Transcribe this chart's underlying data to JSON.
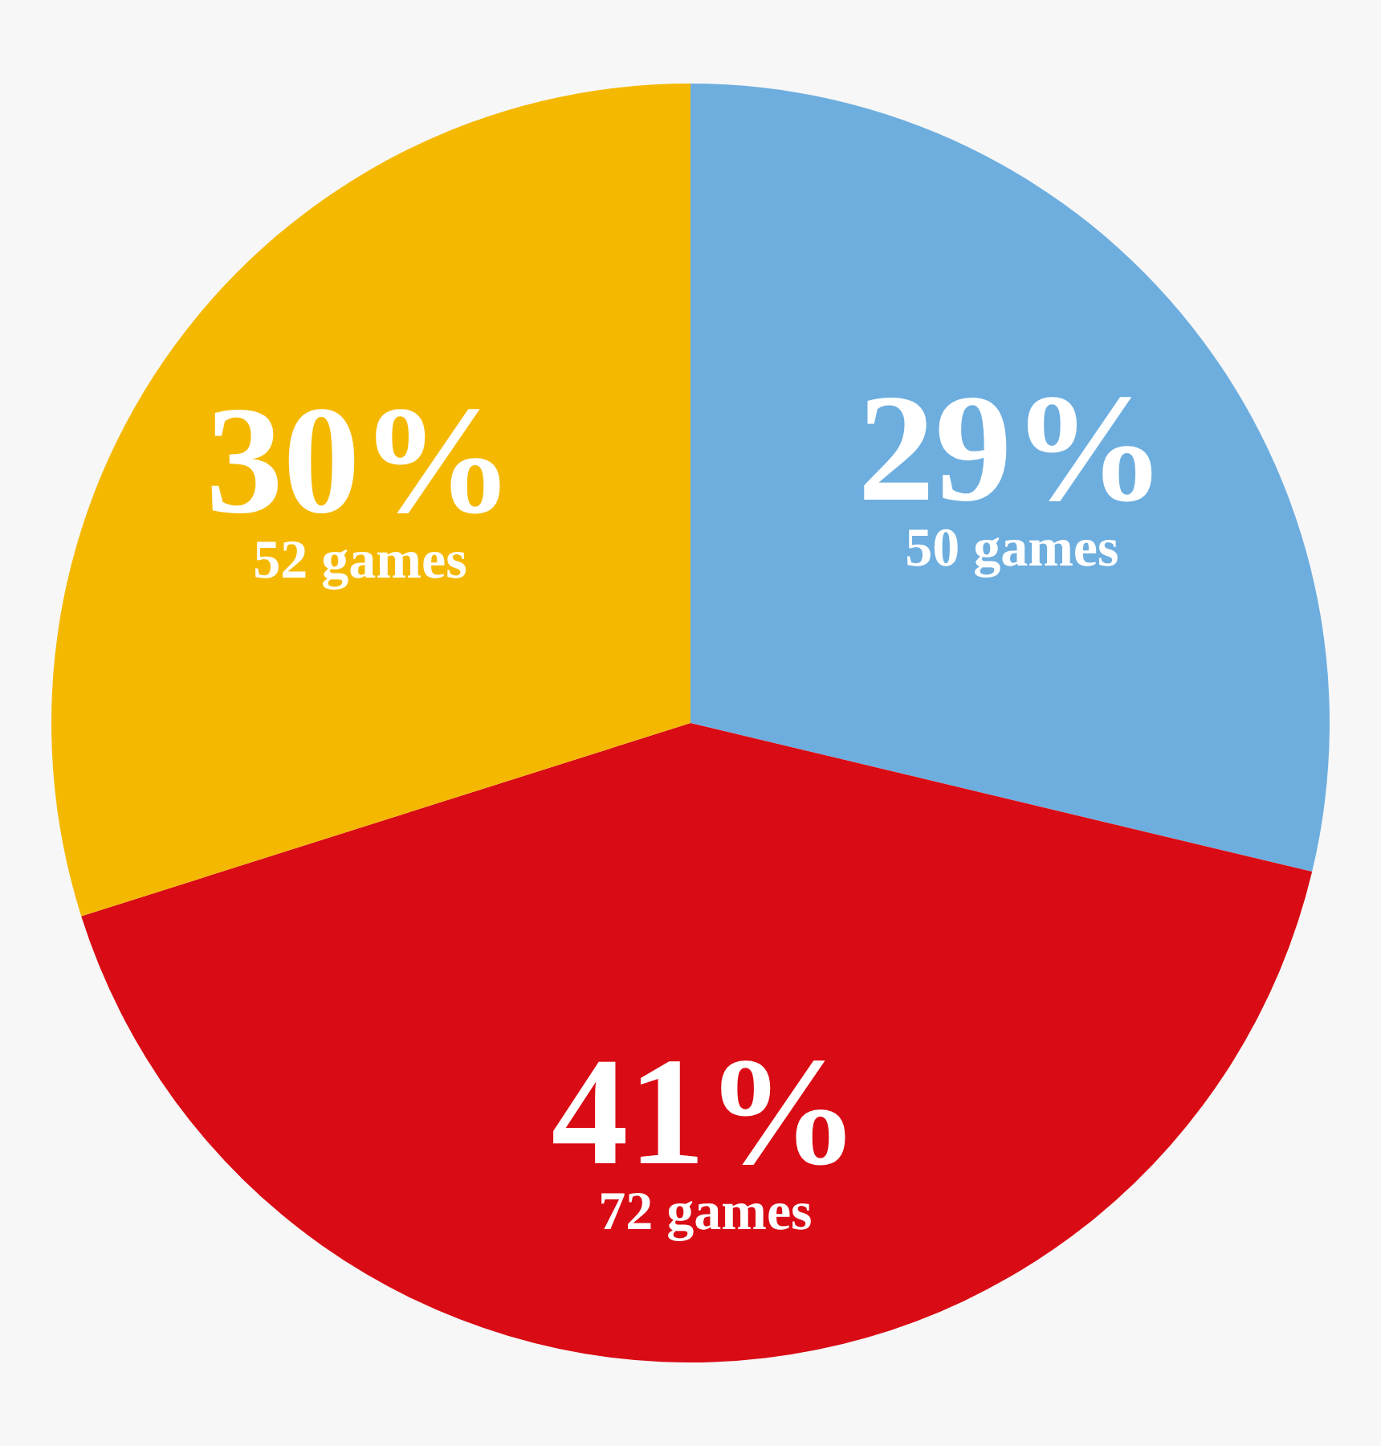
{
  "chart_data": {
    "type": "pie",
    "categories": [
      null,
      null,
      null
    ],
    "values": [
      50,
      72,
      52
    ],
    "colors": [
      "#6daedf",
      "#d90b14",
      "#f5b800"
    ],
    "value_labels": [
      "50 games",
      "72 games",
      "52 games"
    ],
    "annotations": [
      "29%",
      "41%",
      "30%"
    ]
  }
}
